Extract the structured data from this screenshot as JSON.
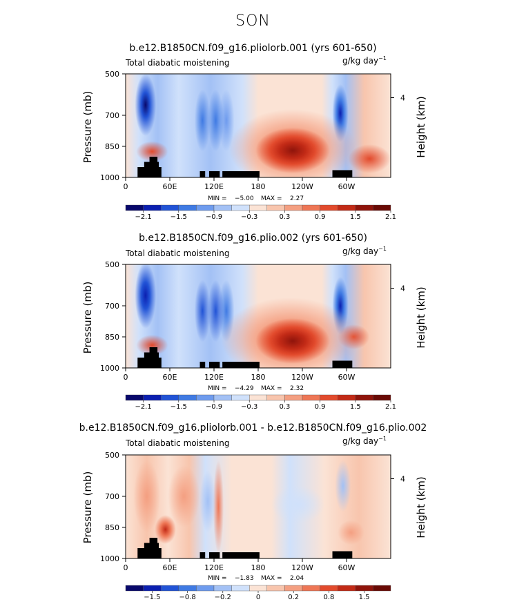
{
  "title": "SON",
  "chart_data": [
    {
      "type": "heatmap",
      "title": "b.e12.B1850CN.f09_g16.pliolorb.001 (yrs 601-650)",
      "variable_label": "Total diabatic moistening",
      "units_label": "g/kg day",
      "units_exponent": "−1",
      "ylabel": "Pressure (mb)",
      "y2label": "Height (km)",
      "x_ticks": [
        "0",
        "60E",
        "120E",
        "180",
        "120W",
        "60W"
      ],
      "y_ticks": [
        "500",
        "700",
        "850",
        "1000"
      ],
      "y2_ticks": [
        "4"
      ],
      "min_label": "MIN =",
      "min_value": "−5.00",
      "max_label": "MAX =",
      "max_value": "2.27",
      "colorbar_labels": [
        "−2.1",
        "−1.5",
        "−0.9",
        "−0.3",
        "0.3",
        "0.9",
        "1.5",
        "2.1"
      ],
      "colorbar_colors": [
        "#08086b",
        "#0b1fb0",
        "#2153d6",
        "#3f7ae3",
        "#6e9bee",
        "#a3c1f5",
        "#d0e1fb",
        "#fbe3d5",
        "#f8c5ad",
        "#f49f81",
        "#ee7655",
        "#e24a2c",
        "#c22a16",
        "#8f140b",
        "#690a05"
      ],
      "xlim": [
        0,
        360
      ],
      "ylim": [
        1000,
        500
      ],
      "field_max": 2.27,
      "field_min": -5.0
    },
    {
      "type": "heatmap",
      "title": "b.e12.B1850CN.f09_g16.plio.002 (yrs 601-650)",
      "variable_label": "Total diabatic moistening",
      "units_label": "g/kg day",
      "units_exponent": "−1",
      "ylabel": "Pressure (mb)",
      "y2label": "Height (km)",
      "x_ticks": [
        "0",
        "60E",
        "120E",
        "180",
        "120W",
        "60W"
      ],
      "y_ticks": [
        "500",
        "700",
        "850",
        "1000"
      ],
      "y2_ticks": [
        "4"
      ],
      "min_label": "MIN =",
      "min_value": "−4.29",
      "max_label": "MAX =",
      "max_value": "2.32",
      "colorbar_labels": [
        "−2.1",
        "−1.5",
        "−0.9",
        "−0.3",
        "0.3",
        "0.9",
        "1.5",
        "2.1"
      ],
      "colorbar_colors": [
        "#08086b",
        "#0b1fb0",
        "#2153d6",
        "#3f7ae3",
        "#6e9bee",
        "#a3c1f5",
        "#d0e1fb",
        "#fbe3d5",
        "#f8c5ad",
        "#f49f81",
        "#ee7655",
        "#e24a2c",
        "#c22a16",
        "#8f140b",
        "#690a05"
      ],
      "xlim": [
        0,
        360
      ],
      "ylim": [
        1000,
        500
      ],
      "field_max": 2.32,
      "field_min": -4.29
    },
    {
      "type": "heatmap",
      "title": "b.e12.B1850CN.f09_g16.pliolorb.001 - b.e12.B1850CN.f09_g16.plio.002",
      "variable_label": "Total diabatic moistening",
      "units_label": "g/kg day",
      "units_exponent": "−1",
      "ylabel": "Pressure (mb)",
      "y2label": "Height (km)",
      "x_ticks": [
        "0",
        "60E",
        "120E",
        "180",
        "120W",
        "60W"
      ],
      "y_ticks": [
        "500",
        "700",
        "850",
        "1000"
      ],
      "y2_ticks": [
        "4"
      ],
      "min_label": "MIN =",
      "min_value": "−1.83",
      "max_label": "MAX =",
      "max_value": "2.04",
      "colorbar_labels": [
        "−1.5",
        "−0.8",
        "−0.2",
        "0",
        "0.2",
        "0.8",
        "1.5"
      ],
      "colorbar_colors": [
        "#08086b",
        "#0b1fb0",
        "#2153d6",
        "#3f7ae3",
        "#6e9bee",
        "#a3c1f5",
        "#d0e1fb",
        "#fbe3d5",
        "#f8c5ad",
        "#f49f81",
        "#ee7655",
        "#e24a2c",
        "#c22a16",
        "#8f140b",
        "#690a05"
      ],
      "xlim": [
        0,
        360
      ],
      "ylim": [
        1000,
        500
      ],
      "field_max": 2.04,
      "field_min": -1.83
    }
  ]
}
